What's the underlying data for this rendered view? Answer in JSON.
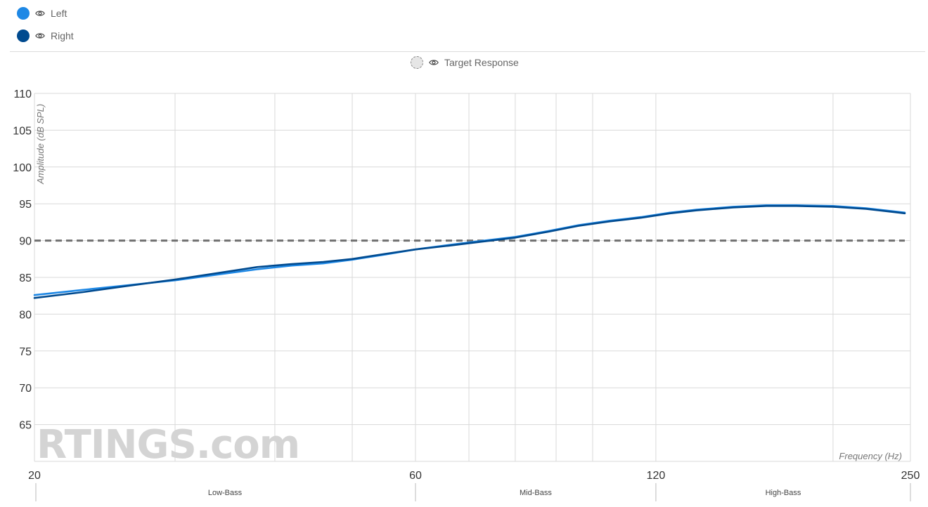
{
  "legend": {
    "left_label": "Left",
    "right_label": "Right",
    "target_label": "Target Response",
    "left_color": "#1e88e5",
    "right_color": "#004a8f",
    "target_color": "#707070",
    "eye_icon": "eye-icon"
  },
  "watermark": "RTINGS.com",
  "chart_data": {
    "type": "line",
    "xlabel": "Frequency (Hz)",
    "ylabel": "Amplitude (dB SPL)",
    "xscale": "log",
    "xlim": [
      20,
      250
    ],
    "ylim": [
      60,
      110
    ],
    "x_ticks": [
      20,
      60,
      120,
      250
    ],
    "y_ticks": [
      65,
      70,
      75,
      80,
      85,
      90,
      95,
      100,
      105,
      110
    ],
    "grid": true,
    "legend_position": "top-left",
    "bands": [
      {
        "label": "Low-Bass",
        "from": 20,
        "to": 60
      },
      {
        "label": "Mid-Bass",
        "from": 60,
        "to": 120
      },
      {
        "label": "High-Bass",
        "from": 120,
        "to": 250
      }
    ],
    "target": {
      "name": "Target Response",
      "value": 90
    },
    "series": [
      {
        "name": "Left",
        "x": [
          20,
          23,
          26,
          30,
          34,
          38,
          42,
          46,
          50,
          55,
          60,
          66,
          72,
          80,
          88,
          96,
          105,
          115,
          125,
          135,
          150,
          165,
          180,
          200,
          220,
          250
        ],
        "y": [
          82.6,
          83.3,
          83.9,
          84.6,
          85.4,
          86.1,
          86.6,
          86.9,
          87.4,
          88.1,
          88.8,
          89.4,
          89.9,
          90.5,
          91.3,
          92.1,
          92.7,
          93.2,
          93.8,
          94.2,
          94.6,
          94.8,
          94.8,
          94.7,
          94.4,
          93.8
        ]
      },
      {
        "name": "Right",
        "x": [
          20,
          23,
          26,
          30,
          34,
          38,
          42,
          46,
          50,
          55,
          60,
          66,
          72,
          80,
          88,
          96,
          105,
          115,
          125,
          135,
          150,
          165,
          180,
          200,
          220,
          250
        ],
        "y": [
          82.2,
          83.0,
          83.8,
          84.7,
          85.6,
          86.4,
          86.8,
          87.1,
          87.5,
          88.2,
          88.8,
          89.3,
          89.8,
          90.4,
          91.2,
          92.0,
          92.6,
          93.1,
          93.7,
          94.1,
          94.5,
          94.7,
          94.7,
          94.6,
          94.3,
          93.7
        ]
      }
    ]
  }
}
